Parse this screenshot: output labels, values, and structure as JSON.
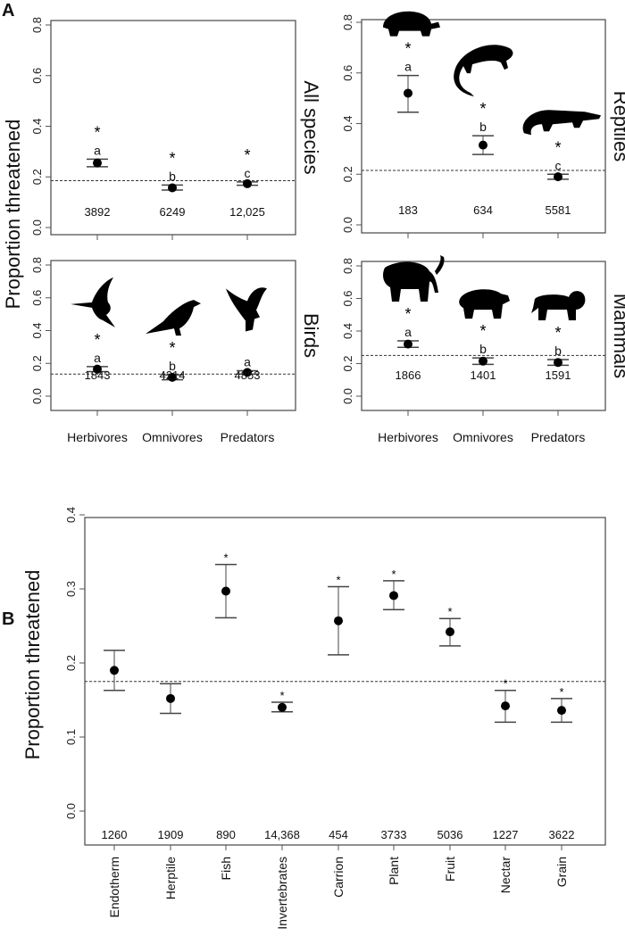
{
  "chart_data": [
    {
      "type": "scatter",
      "panel_label": "A",
      "ylabel": "Proportion threatened",
      "categories": [
        "Herbivores",
        "Omnivores",
        "Predators"
      ],
      "ylim": [
        0,
        0.8
      ],
      "yticks": [
        "0.0",
        "0.2",
        "0.4",
        "0.6",
        "0.8"
      ],
      "subplots": [
        {
          "title": "All species",
          "reference_line": 0.185,
          "values": [
            0.255,
            0.157,
            0.173
          ],
          "ci_low": [
            0.24,
            0.148,
            0.167
          ],
          "ci_high": [
            0.27,
            0.168,
            0.18
          ],
          "letters": [
            "a",
            "b",
            "c"
          ],
          "stars": [
            "*",
            "*",
            "*"
          ],
          "counts": [
            "3892",
            "6249",
            "12,025"
          ],
          "icons": []
        },
        {
          "title": "Reptiles",
          "reference_line": 0.215,
          "values": [
            0.52,
            0.315,
            0.19
          ],
          "ci_low": [
            0.445,
            0.278,
            0.18
          ],
          "ci_high": [
            0.59,
            0.352,
            0.2
          ],
          "letters": [
            "a",
            "b",
            "c"
          ],
          "stars": [
            "*",
            "*",
            "*"
          ],
          "counts": [
            "183",
            "634",
            "5581"
          ],
          "icons": [
            "tortoise-icon",
            "lizard-icon",
            "crocodile-icon"
          ]
        },
        {
          "title": "Birds",
          "reference_line": 0.135,
          "values": [
            0.165,
            0.115,
            0.145
          ],
          "ci_low": [
            0.15,
            0.1,
            0.135
          ],
          "ci_high": [
            0.18,
            0.13,
            0.155
          ],
          "letters": [
            "a",
            "b",
            "a"
          ],
          "stars": [
            "*",
            "*",
            ""
          ],
          "counts": [
            "1843",
            "4214",
            "4853"
          ],
          "icons": [
            "hummingbird-icon",
            "crow-icon",
            "eagle-icon"
          ]
        },
        {
          "title": "Mammals",
          "reference_line": 0.25,
          "values": [
            0.32,
            0.215,
            0.207
          ],
          "ci_low": [
            0.3,
            0.195,
            0.19
          ],
          "ci_high": [
            0.34,
            0.235,
            0.225
          ],
          "letters": [
            "a",
            "b",
            "b"
          ],
          "stars": [
            "*",
            "*",
            "*"
          ],
          "counts": [
            "1866",
            "1401",
            "1591"
          ],
          "icons": [
            "elephant-icon",
            "bear-icon",
            "lion-icon"
          ]
        }
      ]
    },
    {
      "type": "scatter",
      "panel_label": "B",
      "ylabel": "Proportion threatened",
      "ylim": [
        0,
        0.4
      ],
      "yticks": [
        "0.0",
        "0.1",
        "0.2",
        "0.3",
        "0.4"
      ],
      "reference_line": 0.175,
      "categories": [
        "Endotherm",
        "Herptile",
        "Fish",
        "Invertebrates",
        "Carrion",
        "Plant",
        "Fruit",
        "Nectar",
        "Grain"
      ],
      "values": [
        0.19,
        0.152,
        0.297,
        0.14,
        0.257,
        0.291,
        0.242,
        0.142,
        0.136
      ],
      "ci_low": [
        0.163,
        0.132,
        0.261,
        0.134,
        0.211,
        0.272,
        0.223,
        0.12,
        0.12
      ],
      "ci_high": [
        0.217,
        0.172,
        0.333,
        0.147,
        0.303,
        0.311,
        0.26,
        0.163,
        0.152
      ],
      "stars": [
        "",
        "",
        "*",
        "*",
        "*",
        "*",
        "*",
        "*",
        "*"
      ],
      "counts": [
        "1260",
        "1909",
        "890",
        "14,368",
        "454",
        "3733",
        "5036",
        "1227",
        "3622"
      ]
    }
  ]
}
